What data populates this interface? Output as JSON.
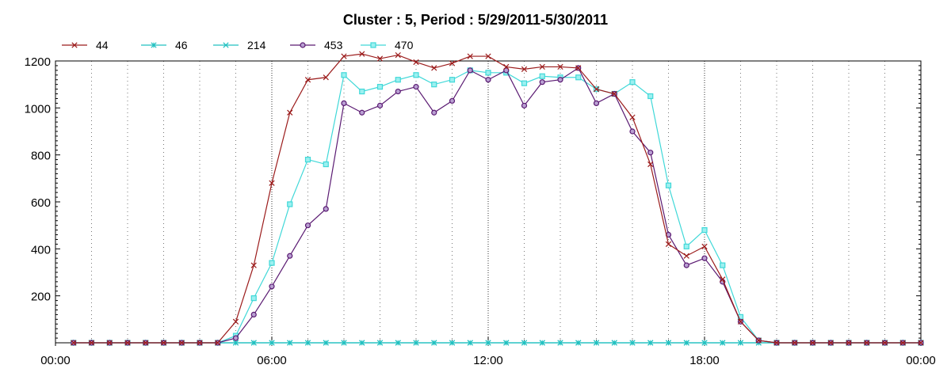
{
  "chart_data": {
    "type": "line",
    "title": "Cluster : 5, Period : 5/29/2011-5/30/2011",
    "xlabel": "",
    "ylabel": "",
    "xlim": [
      0,
      24
    ],
    "ylim": [
      0,
      1200
    ],
    "x_ticks": [
      {
        "value": 0,
        "label": "00:00"
      },
      {
        "value": 6,
        "label": "06:00"
      },
      {
        "value": 12,
        "label": "12:00"
      },
      {
        "value": 18,
        "label": "18:00"
      },
      {
        "value": 24,
        "label": "00:00"
      }
    ],
    "y_ticks": [
      200,
      400,
      600,
      800,
      1000,
      1200
    ],
    "grid": "dotted vertical lines",
    "legend_position": "top-left",
    "x": [
      0.5,
      1.0,
      1.5,
      2.0,
      2.5,
      3.0,
      3.5,
      4.0,
      4.5,
      5.0,
      5.5,
      6.0,
      6.5,
      7.0,
      7.5,
      8.0,
      8.5,
      9.0,
      9.5,
      10.0,
      10.5,
      11.0,
      11.5,
      12.0,
      12.5,
      13.0,
      13.5,
      14.0,
      14.5,
      15.0,
      15.5,
      16.0,
      16.5,
      17.0,
      17.5,
      18.0,
      18.5,
      19.0,
      19.5,
      20.0,
      20.5,
      21.0,
      21.5,
      22.0,
      22.5,
      23.0,
      23.5,
      24.0
    ],
    "series": [
      {
        "name": "44",
        "color": "#9b1b1b",
        "marker": "x",
        "values": [
          0,
          0,
          0,
          0,
          0,
          0,
          0,
          0,
          0,
          90,
          330,
          680,
          980,
          1120,
          1130,
          1220,
          1230,
          1210,
          1225,
          1195,
          1170,
          1190,
          1220,
          1220,
          1175,
          1165,
          1175,
          1175,
          1170,
          1080,
          1060,
          960,
          760,
          420,
          370,
          410,
          270,
          90,
          10,
          0,
          0,
          0,
          0,
          0,
          0,
          0,
          0,
          0
        ]
      },
      {
        "name": "46",
        "color": "#20c0c0",
        "marker": "asterisk",
        "values": [
          0,
          0,
          0,
          0,
          0,
          0,
          0,
          0,
          0,
          0,
          0,
          0,
          0,
          0,
          0,
          0,
          0,
          0,
          0,
          0,
          0,
          0,
          0,
          0,
          0,
          0,
          0,
          0,
          0,
          0,
          0,
          0,
          0,
          0,
          0,
          0,
          0,
          0,
          0,
          0,
          0,
          0,
          0,
          0,
          0,
          0,
          0,
          0
        ]
      },
      {
        "name": "214",
        "color": "#20c0c0",
        "marker": "x",
        "values": [
          0,
          0,
          0,
          0,
          0,
          0,
          0,
          0,
          0,
          0,
          0,
          0,
          0,
          0,
          0,
          0,
          0,
          0,
          0,
          0,
          0,
          0,
          0,
          0,
          0,
          0,
          0,
          0,
          0,
          0,
          0,
          0,
          0,
          0,
          0,
          0,
          0,
          0,
          0,
          0,
          0,
          0,
          0,
          0,
          0,
          0,
          0,
          0
        ]
      },
      {
        "name": "453",
        "color": "#5a1a72",
        "marker": "circle",
        "values": [
          0,
          0,
          0,
          0,
          0,
          0,
          0,
          0,
          0,
          20,
          120,
          240,
          370,
          500,
          570,
          1020,
          980,
          1010,
          1070,
          1090,
          980,
          1030,
          1160,
          1120,
          1160,
          1010,
          1110,
          1120,
          1170,
          1020,
          1060,
          900,
          810,
          460,
          330,
          360,
          260,
          90,
          10,
          0,
          0,
          0,
          0,
          0,
          0,
          0,
          0,
          0
        ]
      },
      {
        "name": "470",
        "color": "#40d8d8",
        "marker": "square",
        "values": [
          0,
          0,
          0,
          0,
          0,
          0,
          0,
          0,
          0,
          30,
          190,
          340,
          590,
          780,
          760,
          1140,
          1070,
          1090,
          1120,
          1140,
          1100,
          1120,
          1160,
          1150,
          1150,
          1105,
          1135,
          1130,
          1130,
          1080,
          1060,
          1110,
          1050,
          670,
          410,
          480,
          330,
          110,
          10,
          0,
          0,
          0,
          0,
          0,
          0,
          0,
          0,
          0
        ]
      }
    ]
  }
}
